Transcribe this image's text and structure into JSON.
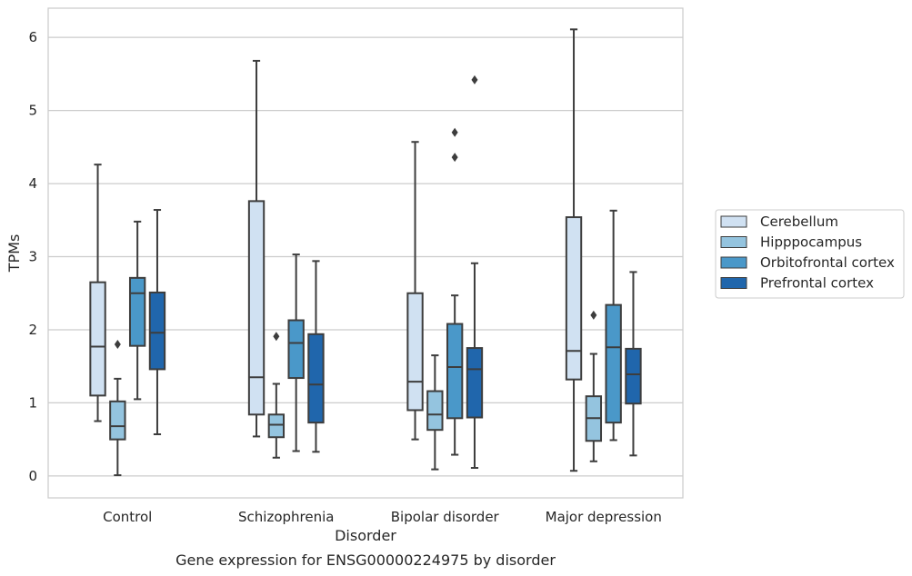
{
  "chart_data": {
    "type": "box",
    "caption": "Gene expression for ENSG00000224975 by disorder",
    "xlabel": "Disorder",
    "ylabel": "TPMs",
    "ylim": [
      -0.3,
      6.4
    ],
    "yticks": [
      0,
      1,
      2,
      3,
      4,
      5,
      6
    ],
    "categories": [
      "Control",
      "Schizophrenia",
      "Bipolar disorder",
      "Major depression"
    ],
    "grid": "horizontal",
    "legend_position": "right",
    "series": [
      {
        "name": "Cerebellum",
        "color": "#d0e1f2",
        "boxes": [
          {
            "whislo": 0.75,
            "q1": 1.1,
            "med": 1.77,
            "q3": 2.65,
            "whishi": 4.26,
            "fliers": []
          },
          {
            "whislo": 0.54,
            "q1": 0.84,
            "med": 1.35,
            "q3": 3.76,
            "whishi": 5.68,
            "fliers": []
          },
          {
            "whislo": 0.5,
            "q1": 0.9,
            "med": 1.29,
            "q3": 2.5,
            "whishi": 4.57,
            "fliers": []
          },
          {
            "whislo": 0.07,
            "q1": 1.32,
            "med": 1.71,
            "q3": 3.54,
            "whishi": 6.11,
            "fliers": []
          }
        ]
      },
      {
        "name": "Hipppocampus",
        "color": "#94c4df",
        "boxes": [
          {
            "whislo": 0.01,
            "q1": 0.5,
            "med": 0.68,
            "q3": 1.02,
            "whishi": 1.33,
            "fliers": [
              1.8
            ]
          },
          {
            "whislo": 0.25,
            "q1": 0.53,
            "med": 0.7,
            "q3": 0.84,
            "whishi": 1.26,
            "fliers": [
              1.91
            ]
          },
          {
            "whislo": 0.09,
            "q1": 0.63,
            "med": 0.84,
            "q3": 1.16,
            "whishi": 1.65,
            "fliers": []
          },
          {
            "whislo": 0.2,
            "q1": 0.48,
            "med": 0.79,
            "q3": 1.09,
            "whishi": 1.67,
            "fliers": [
              2.2
            ]
          }
        ]
      },
      {
        "name": "Orbitofrontal cortex",
        "color": "#4a98c9",
        "boxes": [
          {
            "whislo": 1.05,
            "q1": 1.78,
            "med": 2.5,
            "q3": 2.71,
            "whishi": 3.48,
            "fliers": []
          },
          {
            "whislo": 0.34,
            "q1": 1.34,
            "med": 1.82,
            "q3": 2.13,
            "whishi": 3.03,
            "fliers": []
          },
          {
            "whislo": 0.29,
            "q1": 0.79,
            "med": 1.49,
            "q3": 2.08,
            "whishi": 2.47,
            "fliers": [
              4.36,
              4.7
            ]
          },
          {
            "whislo": 0.49,
            "q1": 0.73,
            "med": 1.76,
            "q3": 2.34,
            "whishi": 3.63,
            "fliers": []
          }
        ]
      },
      {
        "name": "Prefrontal cortex",
        "color": "#2066ac",
        "boxes": [
          {
            "whislo": 0.57,
            "q1": 1.46,
            "med": 1.96,
            "q3": 2.51,
            "whishi": 3.64,
            "fliers": []
          },
          {
            "whislo": 0.33,
            "q1": 0.73,
            "med": 1.25,
            "q3": 1.94,
            "whishi": 2.94,
            "fliers": []
          },
          {
            "whislo": 0.11,
            "q1": 0.8,
            "med": 1.46,
            "q3": 1.75,
            "whishi": 2.91,
            "fliers": [
              5.42
            ]
          },
          {
            "whislo": 0.28,
            "q1": 0.99,
            "med": 1.39,
            "q3": 1.74,
            "whishi": 2.79,
            "fliers": []
          }
        ]
      }
    ]
  }
}
